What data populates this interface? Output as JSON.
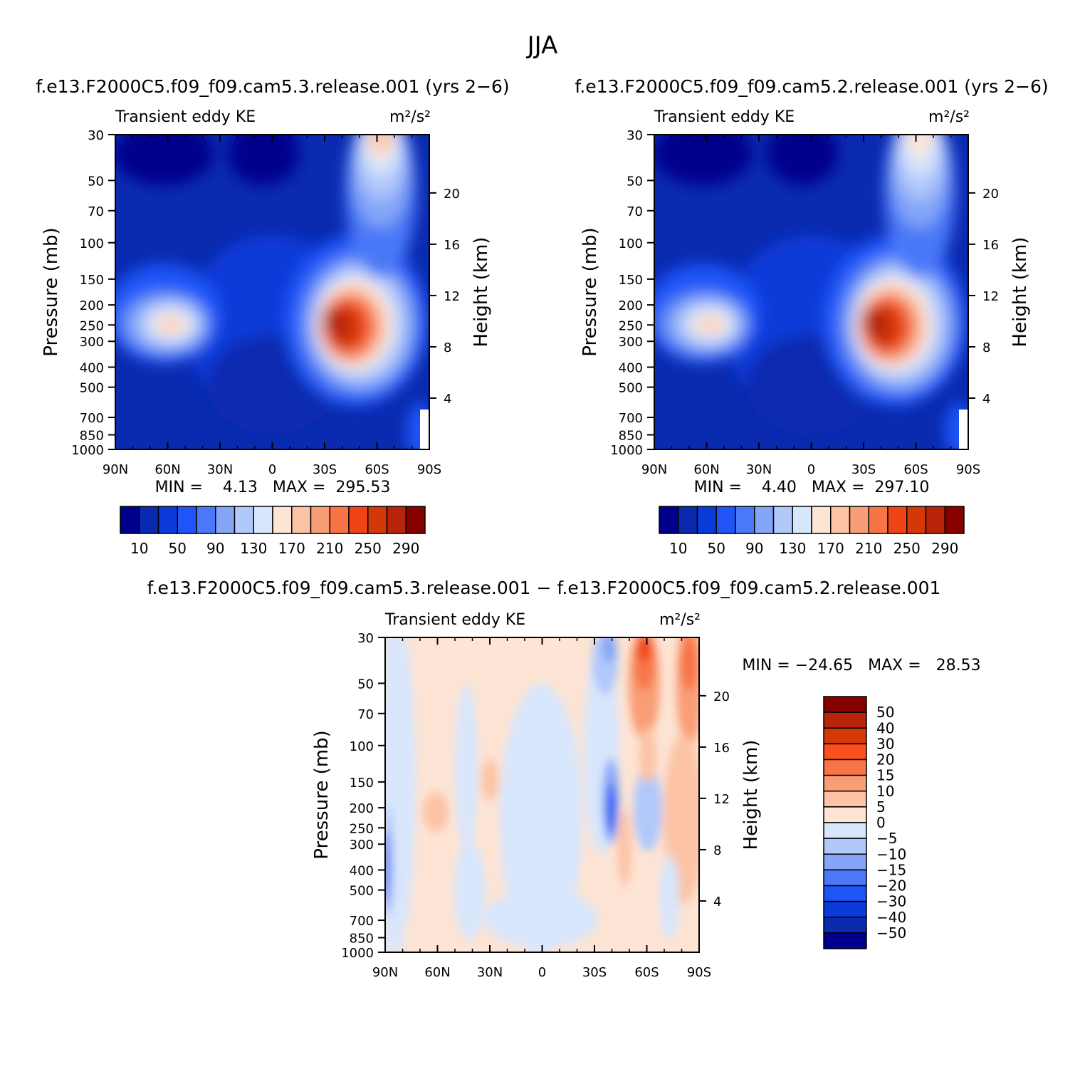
{
  "figure_title": "JJA",
  "panels": [
    {
      "title": "f.e13.F2000C5.f09_f09.cam5.3.release.001 (yrs 2−6)",
      "variable": "Transient eddy KE",
      "units": "m²/s²",
      "stats": "MIN =    4.13   MAX =  295.53"
    },
    {
      "title": "f.e13.F2000C5.f09_f09.cam5.2.release.001 (yrs 2−6)",
      "variable": "Transient eddy KE",
      "units": "m²/s²",
      "stats": "MIN =    4.40   MAX =  297.10"
    },
    {
      "title": "f.e13.F2000C5.f09_f09.cam5.3.release.001 − f.e13.F2000C5.f09_f09.cam5.2.release.001",
      "variable": "Transient eddy KE",
      "units": "m²/s²",
      "stats": "MIN = −24.65   MAX =   28.53"
    }
  ],
  "axes": {
    "ylabel_left": "Pressure (mb)",
    "ylabel_right": "Height (km)",
    "pressure_ticks": [
      "30",
      "50",
      "70",
      "100",
      "150",
      "200",
      "250",
      "300",
      "400",
      "500",
      "700",
      "850",
      "1000"
    ],
    "height_ticks": [
      "20",
      "16",
      "12",
      "8",
      "4"
    ],
    "lat_ticks": [
      "90N",
      "60N",
      "30N",
      "0",
      "30S",
      "60S",
      "90S"
    ]
  },
  "colorbars": {
    "abs_labels": [
      "10",
      "50",
      "90",
      "130",
      "170",
      "210",
      "250",
      "290"
    ],
    "abs_colors": [
      "#00008c",
      "#0a2ab0",
      "#0a3ad8",
      "#1f55f7",
      "#4a78f7",
      "#85a6f7",
      "#b0c8fa",
      "#d8e6fc",
      "#fde4d4",
      "#fcc3a5",
      "#f99d76",
      "#f77447",
      "#ef4516",
      "#d43806",
      "#b8240a",
      "#870000"
    ],
    "diff_labels": [
      "50",
      "40",
      "30",
      "20",
      "15",
      "10",
      "5",
      "0",
      "−5",
      "−10",
      "−15",
      "−20",
      "−30",
      "−40",
      "−50"
    ],
    "diff_colors": [
      "#870000",
      "#b8240a",
      "#d43806",
      "#fb4f1e",
      "#f77447",
      "#f99d76",
      "#fcc3a5",
      "#fde4d4",
      "#d8e6fc",
      "#b0c8fa",
      "#85a6f7",
      "#4a78f7",
      "#1f55f7",
      "#0a3ad8",
      "#0a2ab0",
      "#00008c"
    ]
  },
  "chart_data": [
    {
      "type": "heatmap",
      "title": "f.e13.F2000C5.f09_f09.cam5.3.release.001 (yrs 2−6)",
      "variable": "Transient eddy KE",
      "units": "m²/s²",
      "x": "latitude 90N to 90S",
      "y": "pressure 1000 to 30 mb (log scale)",
      "min": 4.13,
      "max": 295.53,
      "contour_levels": [
        10,
        30,
        50,
        70,
        90,
        110,
        130,
        150,
        170,
        190,
        210,
        230,
        250,
        270,
        290
      ],
      "features": [
        {
          "lat": -40,
          "pressure_mb": 230,
          "value": 290
        },
        {
          "lat": -50,
          "pressure_mb": 275,
          "value": 270
        },
        {
          "lat": 56,
          "pressure_mb": 250,
          "value": 190
        },
        {
          "lat": -45,
          "pressure_mb": 30,
          "value": 210
        }
      ]
    },
    {
      "type": "heatmap",
      "title": "f.e13.F2000C5.f09_f09.cam5.2.release.001 (yrs 2−6)",
      "variable": "Transient eddy KE",
      "units": "m²/s²",
      "x": "latitude 90N to 90S",
      "y": "pressure 1000 to 30 mb (log scale)",
      "min": 4.4,
      "max": 297.1,
      "contour_levels": [
        10,
        30,
        50,
        70,
        90,
        110,
        130,
        150,
        170,
        190,
        210,
        230,
        250,
        270,
        290
      ],
      "features": [
        {
          "lat": -40,
          "pressure_mb": 240,
          "value": 290
        },
        {
          "lat": -50,
          "pressure_mb": 270,
          "value": 270
        },
        {
          "lat": 56,
          "pressure_mb": 250,
          "value": 190
        },
        {
          "lat": -45,
          "pressure_mb": 30,
          "value": 170
        }
      ]
    },
    {
      "type": "heatmap",
      "title": "f.e13.F2000C5.f09_f09.cam5.3.release.001 − f.e13.F2000C5.f09_f09.cam5.2.release.001",
      "variable": "Transient eddy KE",
      "units": "m²/s²",
      "x": "latitude 90N to 90S",
      "y": "pressure 1000 to 30 mb (log scale)",
      "min": -24.65,
      "max": 28.53,
      "contour_levels": [
        -50,
        -40,
        -30,
        -20,
        -15,
        -10,
        -5,
        0,
        5,
        10,
        15,
        20,
        30,
        40,
        50
      ],
      "features": [
        {
          "lat": -57,
          "pressure_mb": 35,
          "value": 25
        },
        {
          "lat": -83,
          "pressure_mb": 35,
          "value": 20
        },
        {
          "lat": -37,
          "pressure_mb": 210,
          "value": -20
        },
        {
          "lat": 89,
          "pressure_mb": 350,
          "value": -20
        }
      ]
    }
  ]
}
